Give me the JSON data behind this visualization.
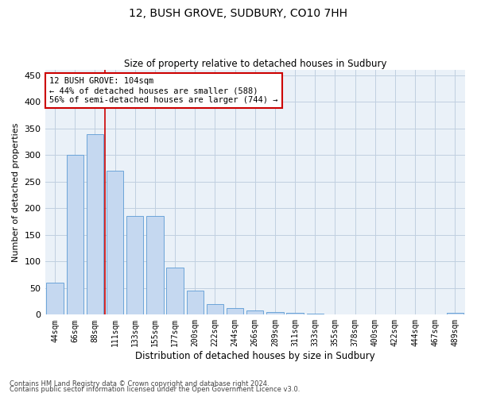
{
  "title_line1": "12, BUSH GROVE, SUDBURY, CO10 7HH",
  "title_line2": "Size of property relative to detached houses in Sudbury",
  "xlabel": "Distribution of detached houses by size in Sudbury",
  "ylabel": "Number of detached properties",
  "categories": [
    "44sqm",
    "66sqm",
    "88sqm",
    "111sqm",
    "133sqm",
    "155sqm",
    "177sqm",
    "200sqm",
    "222sqm",
    "244sqm",
    "266sqm",
    "289sqm",
    "311sqm",
    "333sqm",
    "355sqm",
    "378sqm",
    "400sqm",
    "422sqm",
    "444sqm",
    "467sqm",
    "489sqm"
  ],
  "values": [
    60,
    300,
    340,
    270,
    185,
    185,
    88,
    45,
    20,
    12,
    8,
    5,
    3,
    2,
    1,
    1,
    0,
    1,
    0,
    1,
    3
  ],
  "bar_color": "#c5d8f0",
  "bar_edge_color": "#5b9bd5",
  "vline_x": 2.5,
  "vline_color": "#cc0000",
  "annotation_text": "12 BUSH GROVE: 104sqm\n← 44% of detached houses are smaller (588)\n56% of semi-detached houses are larger (744) →",
  "annotation_box_color": "#ffffff",
  "annotation_box_edge": "#cc0000",
  "ylim": [
    0,
    460
  ],
  "yticks": [
    0,
    50,
    100,
    150,
    200,
    250,
    300,
    350,
    400,
    450
  ],
  "grid_color": "#c0cfe0",
  "background_color": "#eaf1f8",
  "footer1": "Contains HM Land Registry data © Crown copyright and database right 2024.",
  "footer2": "Contains public sector information licensed under the Open Government Licence v3.0."
}
